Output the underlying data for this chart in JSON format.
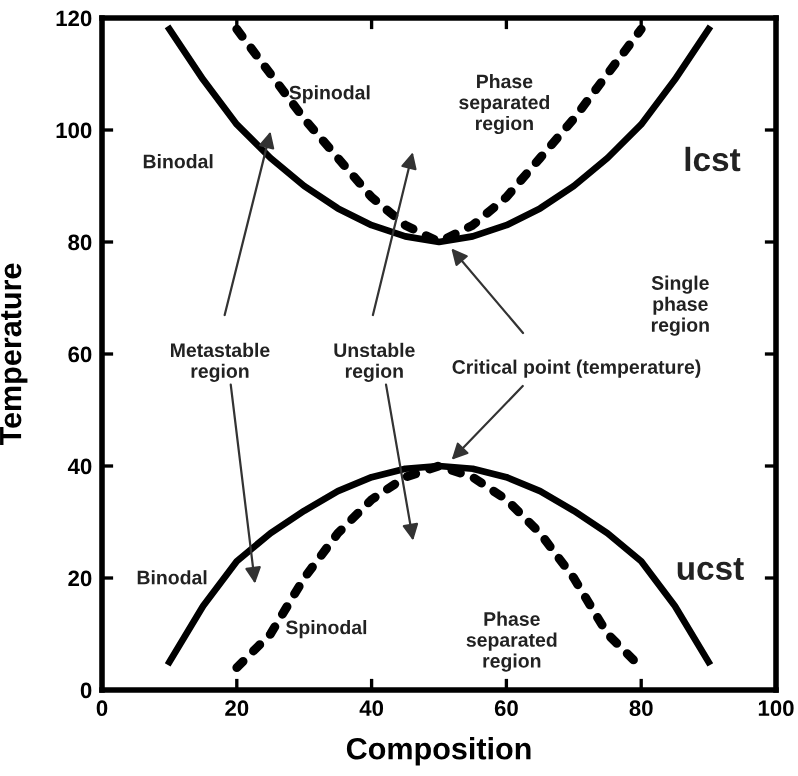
{
  "chart_data": {
    "type": "line",
    "xlabel": "Composition",
    "ylabel": "Temperature",
    "xlim": [
      0,
      100
    ],
    "ylim": [
      0,
      120
    ],
    "xticks": [
      0,
      20,
      40,
      60,
      80,
      100
    ],
    "yticks": [
      0,
      20,
      40,
      60,
      80,
      100,
      120
    ],
    "grid": false,
    "legend": false,
    "marker": "none",
    "series": [
      {
        "color": "#000000",
        "line_style": "solid",
        "x": [
          10,
          15,
          20,
          25,
          30,
          35,
          40,
          45,
          50,
          55,
          60,
          65,
          70,
          75,
          80,
          85,
          90
        ],
        "values": [
          118,
          109,
          101,
          95,
          90,
          86,
          83,
          81,
          80,
          81,
          83,
          86,
          90,
          95,
          101,
          109,
          118
        ]
      },
      {
        "color": "#000000",
        "line_style": "dotted",
        "x": [
          20,
          25,
          30,
          35,
          40,
          45,
          50,
          55,
          60,
          65,
          70,
          75,
          80
        ],
        "values": [
          118,
          110,
          102,
          95,
          88,
          83,
          80,
          83,
          88,
          95,
          102,
          110,
          118
        ]
      },
      {
        "color": "#000000",
        "line_style": "solid",
        "x": [
          10,
          15,
          20,
          25,
          30,
          35,
          40,
          45,
          50,
          55,
          60,
          65,
          70,
          75,
          80,
          85,
          90
        ],
        "values": [
          5,
          15,
          23,
          28,
          32,
          35.5,
          38,
          39.5,
          40,
          39.5,
          38,
          35.5,
          32,
          28,
          23,
          15,
          5
        ]
      },
      {
        "color": "#000000",
        "line_style": "dotted",
        "x": [
          20,
          25,
          30,
          35,
          40,
          45,
          50,
          55,
          60,
          65,
          70,
          75,
          80
        ],
        "values": [
          4,
          10,
          20,
          28,
          34,
          38,
          40,
          38,
          34,
          28,
          20,
          10,
          4
        ]
      }
    ],
    "annotations": [
      "Spinodal",
      "Phase\nseparated\nregion",
      "Binodal",
      "lcst",
      "Single\nphase\nregion",
      "Metastable\nregion",
      "Unstable\nregion",
      "Critical point (temperature)",
      "Binodal",
      "ucst",
      "Spinodal",
      "Phase\nseparated\nregion"
    ]
  }
}
